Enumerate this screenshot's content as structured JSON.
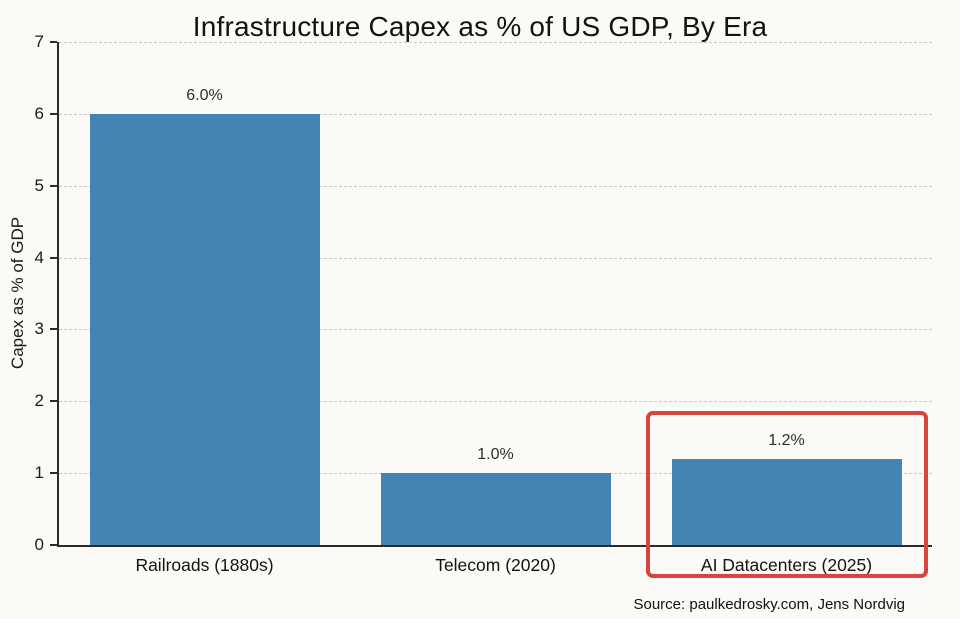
{
  "chart_data": {
    "type": "bar",
    "title": "Infrastructure Capex as % of US GDP, By Era",
    "ylabel": "Capex as % of GDP",
    "xlabel": "",
    "categories": [
      "Railroads (1880s)",
      "Telecom (2020)",
      "AI Datacenters (2025)"
    ],
    "values": [
      6.0,
      1.0,
      1.2
    ],
    "value_labels": [
      "6.0%",
      "1.0%",
      "1.2%"
    ],
    "ylim": [
      0,
      7
    ],
    "yticks": [
      0,
      1,
      2,
      3,
      4,
      5,
      6,
      7
    ],
    "grid": "horizontal-dashed",
    "legend": "none",
    "bar_color": "#4384b5",
    "highlight": {
      "index": 2,
      "color": "#d8453e",
      "border_px": 4
    },
    "source": "Source: paulkedrosky.com, Jens Nordvig"
  }
}
